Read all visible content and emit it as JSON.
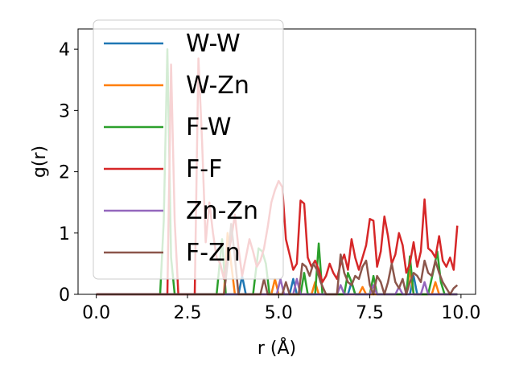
{
  "chart_data": {
    "type": "line",
    "title": "",
    "xlabel": "r (Å)",
    "ylabel": "g(r)",
    "xlim": [
      -0.5,
      10.4
    ],
    "ylim": [
      0,
      4.33
    ],
    "xticks": [
      0.0,
      2.5,
      5.0,
      7.5,
      10.0
    ],
    "xtick_labels": [
      "0.0",
      "2.5",
      "5.0",
      "7.5",
      "10.0"
    ],
    "yticks": [
      0,
      1,
      2,
      3,
      4
    ],
    "ytick_labels": [
      "0",
      "1",
      "2",
      "3",
      "4"
    ],
    "grid": false,
    "legend": "upper-left",
    "series": [
      {
        "name": "W-W",
        "color": "#1f77b4",
        "points": [
          [
            0,
            0
          ],
          [
            3.9,
            0
          ],
          [
            4.0,
            0.3
          ],
          [
            4.1,
            0
          ],
          [
            5.3,
            0
          ],
          [
            5.4,
            0.25
          ],
          [
            5.5,
            0
          ],
          [
            6.9,
            0
          ],
          [
            7.0,
            0.2
          ],
          [
            7.1,
            0
          ],
          [
            8.6,
            0
          ],
          [
            8.7,
            0.3
          ],
          [
            8.8,
            0
          ],
          [
            9.9,
            0
          ]
        ]
      },
      {
        "name": "W-Zn",
        "color": "#ff7f0e",
        "points": [
          [
            0,
            0
          ],
          [
            3.5,
            0
          ],
          [
            3.6,
            1.0
          ],
          [
            3.7,
            0.5
          ],
          [
            3.8,
            0
          ],
          [
            4.8,
            0
          ],
          [
            4.9,
            0.25
          ],
          [
            5.0,
            0
          ],
          [
            5.9,
            0
          ],
          [
            6.0,
            0.2
          ],
          [
            6.1,
            0
          ],
          [
            7.2,
            0
          ],
          [
            7.3,
            0.12
          ],
          [
            7.4,
            0
          ],
          [
            8.5,
            0
          ],
          [
            8.6,
            0.4
          ],
          [
            8.7,
            0
          ],
          [
            9.2,
            0
          ],
          [
            9.3,
            0.2
          ],
          [
            9.4,
            0
          ],
          [
            9.9,
            0
          ]
        ]
      },
      {
        "name": "F-W",
        "color": "#2ca02c",
        "points": [
          [
            0,
            0
          ],
          [
            1.75,
            0
          ],
          [
            1.85,
            1.2
          ],
          [
            1.95,
            4.0
          ],
          [
            2.05,
            0.6
          ],
          [
            2.15,
            0
          ],
          [
            3.3,
            0
          ],
          [
            3.45,
            0.9
          ],
          [
            3.55,
            0
          ],
          [
            4.3,
            0
          ],
          [
            4.45,
            0.75
          ],
          [
            4.55,
            0.7
          ],
          [
            4.65,
            0.5
          ],
          [
            4.75,
            0
          ],
          [
            5.6,
            0
          ],
          [
            5.7,
            0.35
          ],
          [
            5.8,
            0
          ],
          [
            6.0,
            0
          ],
          [
            6.1,
            0.83
          ],
          [
            6.2,
            0
          ],
          [
            6.8,
            0
          ],
          [
            6.9,
            0.35
          ],
          [
            7.0,
            0.2
          ],
          [
            7.1,
            0
          ],
          [
            7.5,
            0
          ],
          [
            7.6,
            0.3
          ],
          [
            7.7,
            0
          ],
          [
            8.5,
            0
          ],
          [
            8.6,
            0.62
          ],
          [
            8.7,
            0
          ],
          [
            9.1,
            0
          ],
          [
            9.25,
            0.4
          ],
          [
            9.35,
            0.7
          ],
          [
            9.45,
            0.2
          ],
          [
            9.55,
            0
          ],
          [
            9.9,
            0
          ]
        ]
      },
      {
        "name": "F-F",
        "color": "#d62728",
        "points": [
          [
            0,
            0
          ],
          [
            1.95,
            0
          ],
          [
            2.05,
            3.75
          ],
          [
            2.15,
            1.2
          ],
          [
            2.25,
            0
          ],
          [
            2.7,
            0
          ],
          [
            2.8,
            3.85
          ],
          [
            2.9,
            2.5
          ],
          [
            3.0,
            0.85
          ],
          [
            3.1,
            1.5
          ],
          [
            3.2,
            1.0
          ],
          [
            3.3,
            0.6
          ],
          [
            3.4,
            0.5
          ],
          [
            3.5,
            0.25
          ],
          [
            3.6,
            0.6
          ],
          [
            3.7,
            0.9
          ],
          [
            3.8,
            1.3
          ],
          [
            3.9,
            0.75
          ],
          [
            4.0,
            0.3
          ],
          [
            4.1,
            0.6
          ],
          [
            4.2,
            0.9
          ],
          [
            4.3,
            0.7
          ],
          [
            4.4,
            0.45
          ],
          [
            4.5,
            0.55
          ],
          [
            4.6,
            0.75
          ],
          [
            4.7,
            1.1
          ],
          [
            4.8,
            1.5
          ],
          [
            4.9,
            1.7
          ],
          [
            5.0,
            1.85
          ],
          [
            5.1,
            1.75
          ],
          [
            5.2,
            0.9
          ],
          [
            5.3,
            0.65
          ],
          [
            5.4,
            0.4
          ],
          [
            5.5,
            0.5
          ],
          [
            5.6,
            1.53
          ],
          [
            5.7,
            1.48
          ],
          [
            5.8,
            0.6
          ],
          [
            5.9,
            0.45
          ],
          [
            6.0,
            0.55
          ],
          [
            6.1,
            0.4
          ],
          [
            6.2,
            0.2
          ],
          [
            6.3,
            0.3
          ],
          [
            6.4,
            0.5
          ],
          [
            6.5,
            0.35
          ],
          [
            6.6,
            0.25
          ],
          [
            6.7,
            0.5
          ],
          [
            6.8,
            0.65
          ],
          [
            6.9,
            0.4
          ],
          [
            7.0,
            0.9
          ],
          [
            7.1,
            0.6
          ],
          [
            7.2,
            0.4
          ],
          [
            7.3,
            0.6
          ],
          [
            7.4,
            0.8
          ],
          [
            7.5,
            1.23
          ],
          [
            7.6,
            1.2
          ],
          [
            7.7,
            0.45
          ],
          [
            7.8,
            0.7
          ],
          [
            7.9,
            1.27
          ],
          [
            8.0,
            0.95
          ],
          [
            8.1,
            0.5
          ],
          [
            8.2,
            0.65
          ],
          [
            8.3,
            1.0
          ],
          [
            8.4,
            0.8
          ],
          [
            8.5,
            0.35
          ],
          [
            8.6,
            0.5
          ],
          [
            8.7,
            0.85
          ],
          [
            8.8,
            0.45
          ],
          [
            8.9,
            0.7
          ],
          [
            9.0,
            1.55
          ],
          [
            9.1,
            0.75
          ],
          [
            9.2,
            0.7
          ],
          [
            9.3,
            0.6
          ],
          [
            9.4,
            0.95
          ],
          [
            9.5,
            0.55
          ],
          [
            9.6,
            0.45
          ],
          [
            9.7,
            0.6
          ],
          [
            9.8,
            0.4
          ],
          [
            9.9,
            1.12
          ]
        ]
      },
      {
        "name": "Zn-Zn",
        "color": "#9467bd",
        "points": [
          [
            0,
            0
          ],
          [
            4.95,
            0
          ],
          [
            5.05,
            0.25
          ],
          [
            5.15,
            0
          ],
          [
            5.4,
            0
          ],
          [
            5.5,
            0.25
          ],
          [
            5.6,
            0
          ],
          [
            6.6,
            0
          ],
          [
            6.7,
            0.15
          ],
          [
            6.8,
            0
          ],
          [
            7.5,
            0
          ],
          [
            7.6,
            0.15
          ],
          [
            7.7,
            0
          ],
          [
            8.2,
            0
          ],
          [
            8.3,
            0.12
          ],
          [
            8.4,
            0
          ],
          [
            8.9,
            0
          ],
          [
            9.0,
            0.2
          ],
          [
            9.1,
            0
          ],
          [
            9.9,
            0
          ]
        ]
      },
      {
        "name": "F-Zn",
        "color": "#8c564b",
        "points": [
          [
            0,
            0
          ],
          [
            3.5,
            0
          ],
          [
            3.6,
            0.5
          ],
          [
            3.7,
            1.15
          ],
          [
            3.8,
            0.6
          ],
          [
            3.9,
            0
          ],
          [
            4.5,
            0
          ],
          [
            4.6,
            0.25
          ],
          [
            4.7,
            0
          ],
          [
            5.1,
            0
          ],
          [
            5.2,
            0.2
          ],
          [
            5.3,
            0
          ],
          [
            5.55,
            0
          ],
          [
            5.65,
            0.5
          ],
          [
            5.75,
            0.45
          ],
          [
            5.85,
            0.3
          ],
          [
            5.95,
            0.5
          ],
          [
            6.05,
            0.4
          ],
          [
            6.15,
            0.2
          ],
          [
            6.3,
            0
          ],
          [
            6.6,
            0
          ],
          [
            6.7,
            0.65
          ],
          [
            6.8,
            0.35
          ],
          [
            6.9,
            0.2
          ],
          [
            7.0,
            0.15
          ],
          [
            7.1,
            0.3
          ],
          [
            7.2,
            0.25
          ],
          [
            7.3,
            0.45
          ],
          [
            7.4,
            0.55
          ],
          [
            7.5,
            0.15
          ],
          [
            7.6,
            0
          ],
          [
            7.7,
            0.3
          ],
          [
            7.8,
            0.2
          ],
          [
            7.9,
            0
          ],
          [
            8.0,
            0.2
          ],
          [
            8.1,
            0.5
          ],
          [
            8.2,
            0.2
          ],
          [
            8.3,
            0.1
          ],
          [
            8.4,
            0.25
          ],
          [
            8.5,
            0
          ],
          [
            8.6,
            0.2
          ],
          [
            8.7,
            0.35
          ],
          [
            8.8,
            0.3
          ],
          [
            8.9,
            0.2
          ],
          [
            9.0,
            0.55
          ],
          [
            9.1,
            0.35
          ],
          [
            9.2,
            0.3
          ],
          [
            9.3,
            0.55
          ],
          [
            9.4,
            0.35
          ],
          [
            9.5,
            0.2
          ],
          [
            9.6,
            0.1
          ],
          [
            9.7,
            0
          ],
          [
            9.8,
            0.1
          ],
          [
            9.9,
            0.15
          ]
        ]
      }
    ]
  }
}
